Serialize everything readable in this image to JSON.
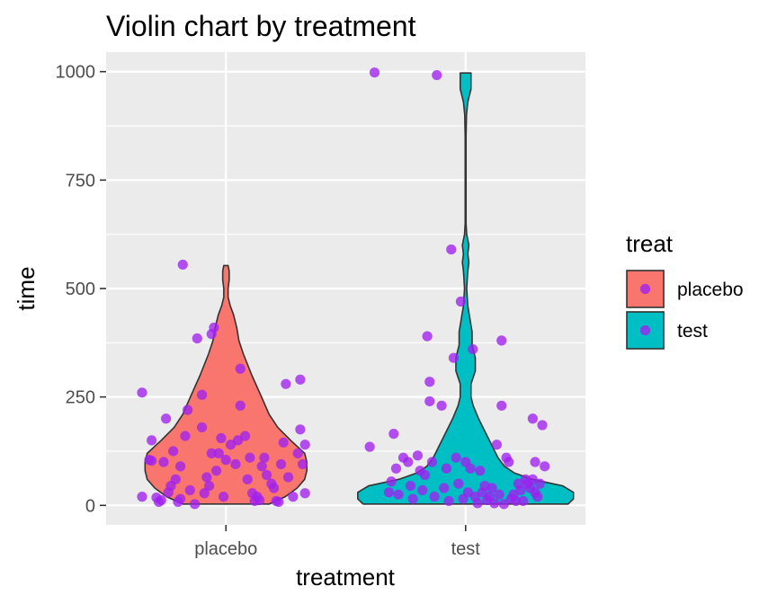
{
  "chart_data": {
    "type": "violin",
    "title": "Violin chart by treatment",
    "xlabel": "treatment",
    "ylabel": "time",
    "ylim": [
      -45,
      1045
    ],
    "yticks": [
      0,
      250,
      500,
      750,
      1000
    ],
    "categories": [
      "placebo",
      "test"
    ],
    "colors": {
      "placebo": "#F8766D",
      "test": "#00BFC4",
      "point": "#A020F0",
      "panel": "#EBEBEB",
      "grid": "#FFFFFF",
      "outline": "#333333"
    },
    "legend": {
      "title": "treat",
      "position": "right",
      "items": [
        {
          "label": "placebo",
          "fill": "#F8766D"
        },
        {
          "label": "test",
          "fill": "#00BFC4"
        }
      ]
    },
    "violins": [
      {
        "group": "placebo",
        "profile": [
          [
            3,
            0.4
          ],
          [
            20,
            0.55
          ],
          [
            40,
            0.66
          ],
          [
            60,
            0.73
          ],
          [
            80,
            0.75
          ],
          [
            100,
            0.75
          ],
          [
            120,
            0.73
          ],
          [
            150,
            0.6
          ],
          [
            180,
            0.48
          ],
          [
            210,
            0.4
          ],
          [
            250,
            0.33
          ],
          [
            300,
            0.24
          ],
          [
            350,
            0.16
          ],
          [
            380,
            0.12
          ],
          [
            410,
            0.1
          ],
          [
            440,
            0.07
          ],
          [
            460,
            0.04
          ],
          [
            480,
            0.02
          ],
          [
            500,
            0.02
          ],
          [
            520,
            0.03
          ],
          [
            540,
            0.03
          ],
          [
            553,
            0.02
          ]
        ]
      },
      {
        "group": "test",
        "profile": [
          [
            3,
            0.95
          ],
          [
            15,
            1.0
          ],
          [
            30,
            1.0
          ],
          [
            45,
            0.9
          ],
          [
            60,
            0.62
          ],
          [
            75,
            0.45
          ],
          [
            90,
            0.36
          ],
          [
            110,
            0.3
          ],
          [
            140,
            0.24
          ],
          [
            170,
            0.18
          ],
          [
            200,
            0.12
          ],
          [
            230,
            0.07
          ],
          [
            250,
            0.05
          ],
          [
            280,
            0.05
          ],
          [
            310,
            0.09
          ],
          [
            340,
            0.09
          ],
          [
            370,
            0.06
          ],
          [
            400,
            0.06
          ],
          [
            430,
            0.04
          ],
          [
            460,
            0.02
          ],
          [
            500,
            0.01
          ],
          [
            540,
            0.02
          ],
          [
            560,
            0.03
          ],
          [
            580,
            0.02
          ],
          [
            600,
            0.03
          ],
          [
            625,
            0.01
          ],
          [
            650,
            0.004
          ],
          [
            700,
            0.004
          ],
          [
            750,
            0.004
          ],
          [
            800,
            0.004
          ],
          [
            850,
            0.004
          ],
          [
            900,
            0.008
          ],
          [
            930,
            0.02
          ],
          [
            960,
            0.05
          ],
          [
            980,
            0.05
          ],
          [
            997,
            0.05
          ]
        ]
      }
    ],
    "points": [
      {
        "group": "placebo",
        "jitter": -0.35,
        "time": 20
      },
      {
        "group": "placebo",
        "jitter": -0.35,
        "time": 260
      },
      {
        "group": "placebo",
        "jitter": -0.32,
        "time": 105
      },
      {
        "group": "placebo",
        "jitter": -0.31,
        "time": 150
      },
      {
        "group": "placebo",
        "jitter": -0.31,
        "time": 103
      },
      {
        "group": "placebo",
        "jitter": -0.29,
        "time": 18
      },
      {
        "group": "placebo",
        "jitter": -0.28,
        "time": 8
      },
      {
        "group": "placebo",
        "jitter": -0.27,
        "time": 12
      },
      {
        "group": "placebo",
        "jitter": -0.26,
        "time": 100
      },
      {
        "group": "placebo",
        "jitter": -0.25,
        "time": 200
      },
      {
        "group": "placebo",
        "jitter": -0.24,
        "time": 30
      },
      {
        "group": "placebo",
        "jitter": -0.23,
        "time": 45
      },
      {
        "group": "placebo",
        "jitter": -0.22,
        "time": 125
      },
      {
        "group": "placebo",
        "jitter": -0.21,
        "time": 60
      },
      {
        "group": "placebo",
        "jitter": -0.2,
        "time": 8
      },
      {
        "group": "placebo",
        "jitter": -0.19,
        "time": 15
      },
      {
        "group": "placebo",
        "jitter": -0.19,
        "time": 90
      },
      {
        "group": "placebo",
        "jitter": -0.18,
        "time": 555
      },
      {
        "group": "placebo",
        "jitter": -0.17,
        "time": 160
      },
      {
        "group": "placebo",
        "jitter": -0.16,
        "time": 220
      },
      {
        "group": "placebo",
        "jitter": -0.15,
        "time": 35
      },
      {
        "group": "placebo",
        "jitter": -0.13,
        "time": 3
      },
      {
        "group": "placebo",
        "jitter": -0.12,
        "time": 385
      },
      {
        "group": "placebo",
        "jitter": -0.1,
        "time": 255
      },
      {
        "group": "placebo",
        "jitter": -0.1,
        "time": 180
      },
      {
        "group": "placebo",
        "jitter": -0.09,
        "time": 28
      },
      {
        "group": "placebo",
        "jitter": -0.08,
        "time": 65
      },
      {
        "group": "placebo",
        "jitter": -0.07,
        "time": 45
      },
      {
        "group": "placebo",
        "jitter": -0.06,
        "time": 120
      },
      {
        "group": "placebo",
        "jitter": -0.06,
        "time": 395
      },
      {
        "group": "placebo",
        "jitter": -0.05,
        "time": 410
      },
      {
        "group": "placebo",
        "jitter": -0.04,
        "time": 80
      },
      {
        "group": "placebo",
        "jitter": -0.03,
        "time": 120
      },
      {
        "group": "placebo",
        "jitter": -0.02,
        "time": 155
      },
      {
        "group": "placebo",
        "jitter": -0.01,
        "time": 20
      },
      {
        "group": "placebo",
        "jitter": 0.0,
        "time": 105
      },
      {
        "group": "placebo",
        "jitter": 0.02,
        "time": 140
      },
      {
        "group": "placebo",
        "jitter": 0.04,
        "time": 95
      },
      {
        "group": "placebo",
        "jitter": 0.05,
        "time": 150
      },
      {
        "group": "placebo",
        "jitter": 0.06,
        "time": 315
      },
      {
        "group": "placebo",
        "jitter": 0.06,
        "time": 230
      },
      {
        "group": "placebo",
        "jitter": 0.08,
        "time": 160
      },
      {
        "group": "placebo",
        "jitter": 0.09,
        "time": 60
      },
      {
        "group": "placebo",
        "jitter": 0.1,
        "time": 110
      },
      {
        "group": "placebo",
        "jitter": 0.11,
        "time": 28
      },
      {
        "group": "placebo",
        "jitter": 0.12,
        "time": 10
      },
      {
        "group": "placebo",
        "jitter": 0.13,
        "time": 20
      },
      {
        "group": "placebo",
        "jitter": 0.14,
        "time": 12
      },
      {
        "group": "placebo",
        "jitter": 0.15,
        "time": 90
      },
      {
        "group": "placebo",
        "jitter": 0.16,
        "time": 110
      },
      {
        "group": "placebo",
        "jitter": 0.17,
        "time": 70
      },
      {
        "group": "placebo",
        "jitter": 0.19,
        "time": 50
      },
      {
        "group": "placebo",
        "jitter": 0.2,
        "time": 40
      },
      {
        "group": "placebo",
        "jitter": 0.21,
        "time": 10
      },
      {
        "group": "placebo",
        "jitter": 0.22,
        "time": 8
      },
      {
        "group": "placebo",
        "jitter": 0.23,
        "time": 95
      },
      {
        "group": "placebo",
        "jitter": 0.24,
        "time": 145
      },
      {
        "group": "placebo",
        "jitter": 0.25,
        "time": 280
      },
      {
        "group": "placebo",
        "jitter": 0.26,
        "time": 65
      },
      {
        "group": "placebo",
        "jitter": 0.28,
        "time": 20
      },
      {
        "group": "placebo",
        "jitter": 0.3,
        "time": 120
      },
      {
        "group": "placebo",
        "jitter": 0.31,
        "time": 290
      },
      {
        "group": "placebo",
        "jitter": 0.31,
        "time": 175
      },
      {
        "group": "placebo",
        "jitter": 0.32,
        "time": 95
      },
      {
        "group": "placebo",
        "jitter": 0.33,
        "time": 140
      },
      {
        "group": "placebo",
        "jitter": 0.33,
        "time": 28
      },
      {
        "group": "test",
        "jitter": -0.4,
        "time": 135
      },
      {
        "group": "test",
        "jitter": -0.38,
        "time": 998
      },
      {
        "group": "test",
        "jitter": -0.32,
        "time": 30
      },
      {
        "group": "test",
        "jitter": -0.31,
        "time": 55
      },
      {
        "group": "test",
        "jitter": -0.3,
        "time": 165
      },
      {
        "group": "test",
        "jitter": -0.29,
        "time": 85
      },
      {
        "group": "test",
        "jitter": -0.28,
        "time": 25
      },
      {
        "group": "test",
        "jitter": -0.26,
        "time": 110
      },
      {
        "group": "test",
        "jitter": -0.24,
        "time": 100
      },
      {
        "group": "test",
        "jitter": -0.23,
        "time": 45
      },
      {
        "group": "test",
        "jitter": -0.22,
        "time": 15
      },
      {
        "group": "test",
        "jitter": -0.2,
        "time": 115
      },
      {
        "group": "test",
        "jitter": -0.19,
        "time": 80
      },
      {
        "group": "test",
        "jitter": -0.18,
        "time": 35
      },
      {
        "group": "test",
        "jitter": -0.17,
        "time": 70
      },
      {
        "group": "test",
        "jitter": -0.16,
        "time": 390
      },
      {
        "group": "test",
        "jitter": -0.15,
        "time": 285
      },
      {
        "group": "test",
        "jitter": -0.15,
        "time": 240
      },
      {
        "group": "test",
        "jitter": -0.14,
        "time": 100
      },
      {
        "group": "test",
        "jitter": -0.13,
        "time": 20
      },
      {
        "group": "test",
        "jitter": -0.12,
        "time": 992
      },
      {
        "group": "test",
        "jitter": -0.1,
        "time": 230
      },
      {
        "group": "test",
        "jitter": -0.09,
        "time": 40
      },
      {
        "group": "test",
        "jitter": -0.08,
        "time": 85
      },
      {
        "group": "test",
        "jitter": -0.07,
        "time": 10
      },
      {
        "group": "test",
        "jitter": -0.06,
        "time": 590
      },
      {
        "group": "test",
        "jitter": -0.05,
        "time": 340
      },
      {
        "group": "test",
        "jitter": -0.04,
        "time": 110
      },
      {
        "group": "test",
        "jitter": -0.03,
        "time": 50
      },
      {
        "group": "test",
        "jitter": -0.02,
        "time": 470
      },
      {
        "group": "test",
        "jitter": -0.01,
        "time": 15
      },
      {
        "group": "test",
        "jitter": 0.0,
        "time": 100
      },
      {
        "group": "test",
        "jitter": 0.01,
        "time": 30
      },
      {
        "group": "test",
        "jitter": 0.02,
        "time": 85
      },
      {
        "group": "test",
        "jitter": 0.03,
        "time": 360
      },
      {
        "group": "test",
        "jitter": 0.04,
        "time": 20
      },
      {
        "group": "test",
        "jitter": 0.05,
        "time": 5
      },
      {
        "group": "test",
        "jitter": 0.06,
        "time": 80
      },
      {
        "group": "test",
        "jitter": 0.07,
        "time": 30
      },
      {
        "group": "test",
        "jitter": 0.08,
        "time": 45
      },
      {
        "group": "test",
        "jitter": 0.09,
        "time": 12
      },
      {
        "group": "test",
        "jitter": 0.1,
        "time": 20
      },
      {
        "group": "test",
        "jitter": 0.11,
        "time": 40
      },
      {
        "group": "test",
        "jitter": 0.12,
        "time": 5
      },
      {
        "group": "test",
        "jitter": 0.13,
        "time": 140
      },
      {
        "group": "test",
        "jitter": 0.14,
        "time": 25
      },
      {
        "group": "test",
        "jitter": 0.15,
        "time": 380
      },
      {
        "group": "test",
        "jitter": 0.15,
        "time": 230
      },
      {
        "group": "test",
        "jitter": 0.16,
        "time": 3
      },
      {
        "group": "test",
        "jitter": 0.17,
        "time": 110
      },
      {
        "group": "test",
        "jitter": 0.18,
        "time": 100
      },
      {
        "group": "test",
        "jitter": 0.19,
        "time": 15
      },
      {
        "group": "test",
        "jitter": 0.2,
        "time": 25
      },
      {
        "group": "test",
        "jitter": 0.22,
        "time": 50
      },
      {
        "group": "test",
        "jitter": 0.23,
        "time": 35
      },
      {
        "group": "test",
        "jitter": 0.24,
        "time": 10
      },
      {
        "group": "test",
        "jitter": 0.25,
        "time": 60
      },
      {
        "group": "test",
        "jitter": 0.26,
        "time": 50
      },
      {
        "group": "test",
        "jitter": 0.27,
        "time": 40
      },
      {
        "group": "test",
        "jitter": 0.28,
        "time": 60
      },
      {
        "group": "test",
        "jitter": 0.28,
        "time": 200
      },
      {
        "group": "test",
        "jitter": 0.29,
        "time": 30
      },
      {
        "group": "test",
        "jitter": 0.3,
        "time": 20
      },
      {
        "group": "test",
        "jitter": 0.31,
        "time": 50
      },
      {
        "group": "test",
        "jitter": 0.32,
        "time": 185
      },
      {
        "group": "test",
        "jitter": 0.33,
        "time": 90
      },
      {
        "group": "test",
        "jitter": 0.29,
        "time": 100
      },
      {
        "group": "test",
        "jitter": 0.21,
        "time": 10
      }
    ]
  }
}
